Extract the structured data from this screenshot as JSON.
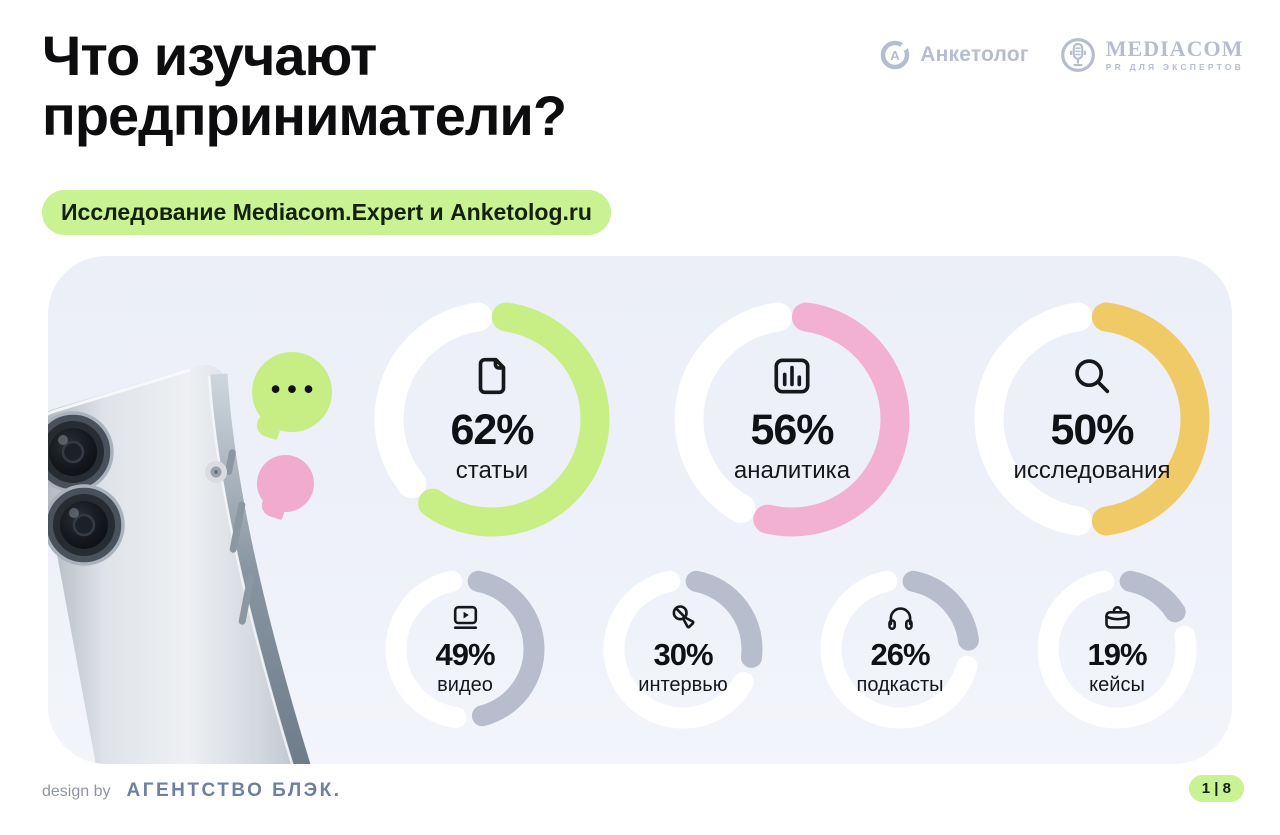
{
  "page": {
    "title_line1": "Что изучают",
    "title_line2": "предприниматели?",
    "subtitle_badge": "Исследование Mediacom.Expert и Anketolog.ru",
    "typing_dots": "•••",
    "footer": {
      "design_by": "design by",
      "agency": "АГЕНТСТВО БЛЭК.",
      "page_indicator": "1 | 8"
    }
  },
  "logos": {
    "anketolog": {
      "label": "Анкетолог"
    },
    "mediacom": {
      "label": "MEDIACOM",
      "sublabel": "PR ДЛЯ ЭКСПЕРТОВ"
    }
  },
  "chart_data": {
    "type": "pie",
    "variant": "donut-progress-set",
    "title": "Что изучают предприниматели?",
    "subtitle": "Исследование Mediacom.Expert и Anketolog.ru",
    "categories": [
      "статьи",
      "аналитика",
      "исследования",
      "видео",
      "интервью",
      "подкасты",
      "кейсы"
    ],
    "values": [
      62,
      56,
      50,
      49,
      30,
      26,
      19
    ],
    "track_color": "#ffffff",
    "items": [
      {
        "label": "статьи",
        "value": 62,
        "percent_label": "62%",
        "color": "#c8ee86",
        "icon": "document-icon",
        "size": "large"
      },
      {
        "label": "аналитика",
        "value": 56,
        "percent_label": "56%",
        "color": "#f2b0d3",
        "icon": "bar-chart-icon",
        "size": "large"
      },
      {
        "label": "исследования",
        "value": 50,
        "percent_label": "50%",
        "color": "#f0ca67",
        "icon": "search-icon",
        "size": "large"
      },
      {
        "label": "видео",
        "value": 49,
        "percent_label": "49%",
        "color": "#b8bdcd",
        "icon": "video-icon",
        "size": "small"
      },
      {
        "label": "интервью",
        "value": 30,
        "percent_label": "30%",
        "color": "#b8bdcd",
        "icon": "microphone-icon",
        "size": "small"
      },
      {
        "label": "подкасты",
        "value": 26,
        "percent_label": "26%",
        "color": "#b8bdcd",
        "icon": "headphones-icon",
        "size": "small"
      },
      {
        "label": "кейсы",
        "value": 19,
        "percent_label": "19%",
        "color": "#b8bdcd",
        "icon": "briefcase-icon",
        "size": "small"
      }
    ],
    "accent_colors": {
      "green": "#c8ee86",
      "pink": "#f2b0d3",
      "yellow": "#f0ca67",
      "gray": "#b8bdcd",
      "badge_green": "#c9f292"
    }
  }
}
